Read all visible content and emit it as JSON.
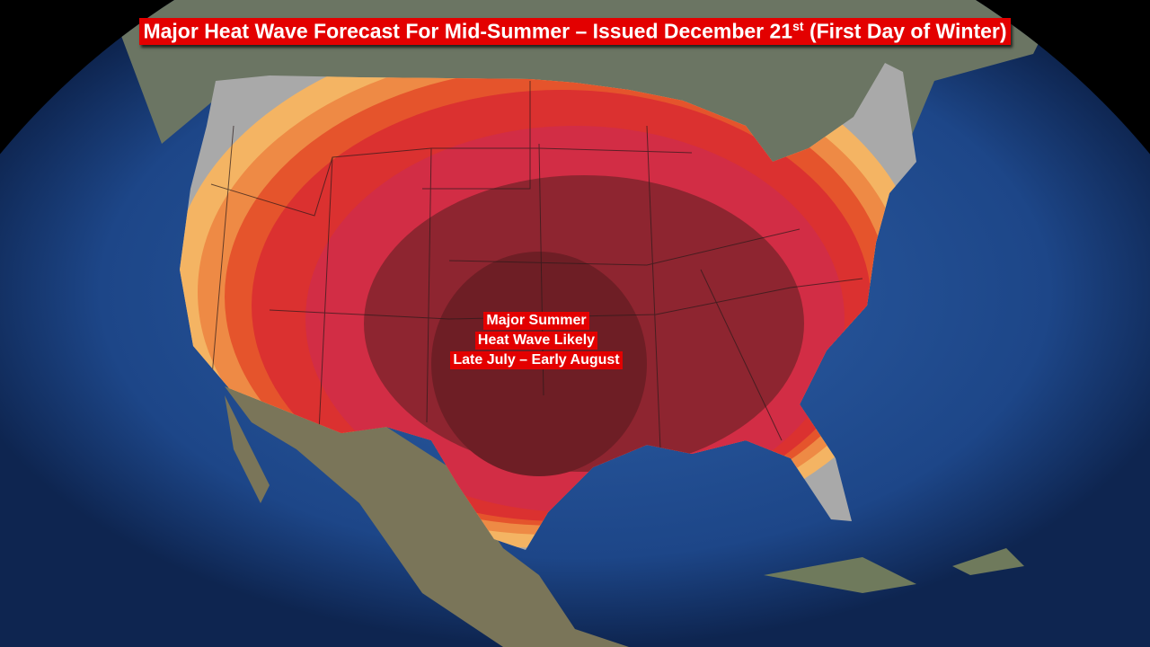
{
  "header": {
    "title": {
      "before": "Major Heat Wave Forecast For Mid-Summer – Issued December 21",
      "superscript": "st",
      "after": "(First Day of Winter)"
    }
  },
  "annotation": {
    "lines": [
      "Major Summer",
      "Heat Wave Likely",
      "Late July – Early August"
    ]
  }
}
